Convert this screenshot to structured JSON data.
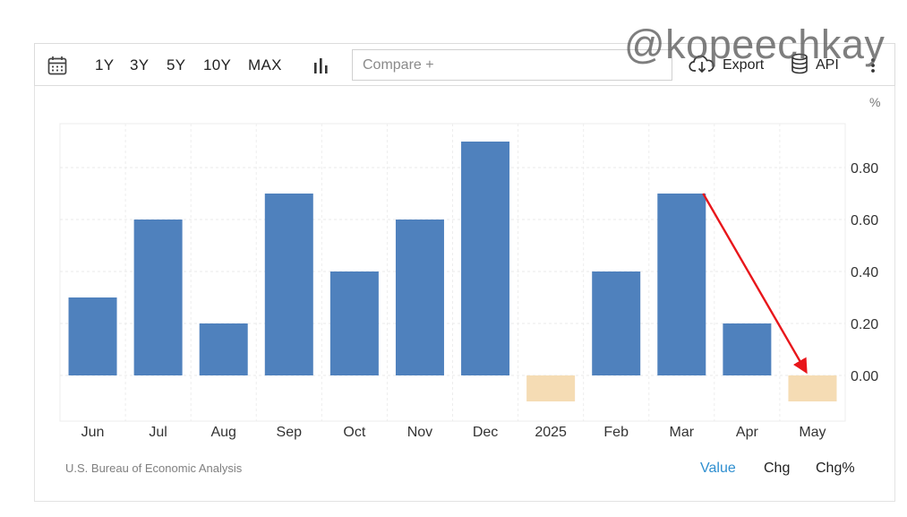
{
  "toolbar": {
    "calendar_icon": "calendar-icon",
    "ranges": [
      "1Y",
      "3Y",
      "5Y",
      "10Y",
      "MAX"
    ],
    "chart_type_icon": "bar-chart-icon",
    "compare_placeholder": "Compare +",
    "export_label": "Export",
    "export_icon": "cloud-download-icon",
    "api_label": "API",
    "api_icon": "database-icon",
    "more_icon": "vertical-dots-icon"
  },
  "watermark": "@kopeechkay",
  "unit_label": "%",
  "source": "U.S. Bureau of Economic Analysis",
  "view_tabs": [
    "Value",
    "Chg",
    "Chg%"
  ],
  "active_view_tab": "Value",
  "colors": {
    "positive_bar": "#4f81bd",
    "negative_bar": "#f5dcb4",
    "active_tab": "#2f8fd0",
    "arrow": "#e8161b"
  },
  "chart_data": {
    "type": "bar",
    "categories": [
      "Jun",
      "Jul",
      "Aug",
      "Sep",
      "Oct",
      "Nov",
      "Dec",
      "2025",
      "Feb",
      "Mar",
      "Apr",
      "May"
    ],
    "values": [
      0.3,
      0.6,
      0.2,
      0.7,
      0.4,
      0.6,
      0.9,
      -0.1,
      0.4,
      0.7,
      0.2,
      -0.1
    ],
    "yticks": [
      0.0,
      0.2,
      0.4,
      0.6,
      0.8
    ],
    "tick_labels": [
      "0.00",
      "0.20",
      "0.40",
      "0.60",
      "0.80"
    ],
    "ylim": [
      -0.18,
      0.97
    ],
    "y_axis_side": "right",
    "grid": true,
    "annotation": {
      "type": "arrow",
      "from_category": "Mar",
      "from_value": 0.7,
      "to_category": "May",
      "to_value": 0.0
    }
  }
}
